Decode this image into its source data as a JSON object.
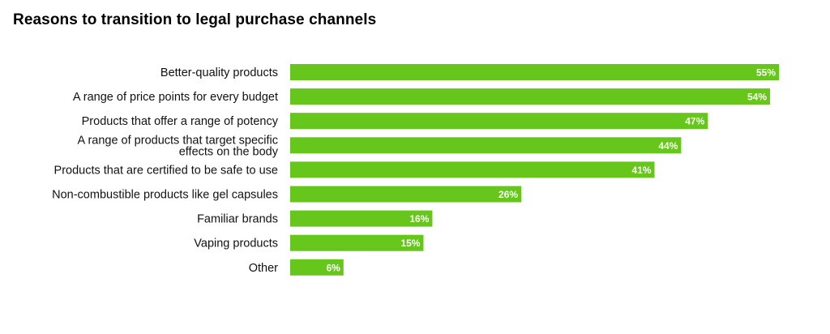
{
  "chart_data": {
    "type": "bar",
    "orientation": "horizontal",
    "title": "Reasons to transition to legal purchase channels",
    "xlabel": "",
    "ylabel": "",
    "value_suffix": "%",
    "xlim": [
      0,
      55
    ],
    "grid": false,
    "bar_color": "#66C61C",
    "categories": [
      "Better-quality products",
      "A range of price points for every budget",
      "Products that offer a range of potency",
      "A range of products that target specific effects on the body",
      "Products that are certified to be safe to use",
      "Non-combustible products like gel capsules",
      "Familiar brands",
      "Vaping products",
      "Other"
    ],
    "category_lines": [
      [
        "Better-quality products"
      ],
      [
        "A range of price points for every budget"
      ],
      [
        "Products that offer a range of potency"
      ],
      [
        "A range of products that target specific",
        "effects on the body"
      ],
      [
        "Products that are certified to be safe to use"
      ],
      [
        "Non-combustible products like gel capsules"
      ],
      [
        "Familiar brands"
      ],
      [
        "Vaping products"
      ],
      [
        "Other"
      ]
    ],
    "values": [
      55,
      54,
      47,
      44,
      41,
      26,
      16,
      15,
      6
    ]
  }
}
